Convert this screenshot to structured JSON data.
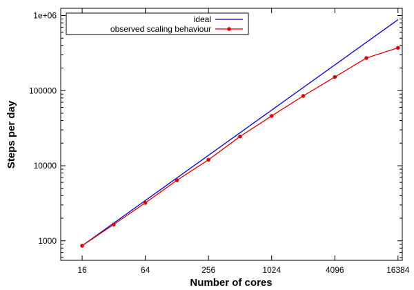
{
  "chart_data": {
    "type": "line",
    "title": "",
    "xlabel": "Number of cores",
    "ylabel": "Steps per day",
    "x_scale": "log2",
    "y_scale": "log10",
    "xlim": [
      10,
      18000
    ],
    "ylim": [
      550,
      1250000
    ],
    "x_ticks": [
      16,
      64,
      256,
      1024,
      4096,
      16384
    ],
    "x_tick_labels": [
      "16",
      "64",
      "256",
      "1024",
      "4096",
      "16384"
    ],
    "y_ticks": [
      1000,
      10000,
      100000,
      1000000
    ],
    "y_tick_labels": [
      "1000",
      "10000",
      "100000",
      "1e+06"
    ],
    "grid": false,
    "legend_position": "top-left",
    "series": [
      {
        "name": "ideal",
        "color": "#0000cc",
        "marker": "none",
        "x": [
          16,
          16384
        ],
        "y": [
          860,
          880640
        ]
      },
      {
        "name": "observed scaling behaviour",
        "color": "#dd0000",
        "marker": "circle",
        "x": [
          16,
          32,
          64,
          128,
          256,
          512,
          1024,
          2048,
          4096,
          8192,
          16384
        ],
        "y": [
          860,
          1650,
          3200,
          6400,
          12000,
          24500,
          46000,
          85000,
          152000,
          272000,
          372000
        ]
      }
    ]
  }
}
